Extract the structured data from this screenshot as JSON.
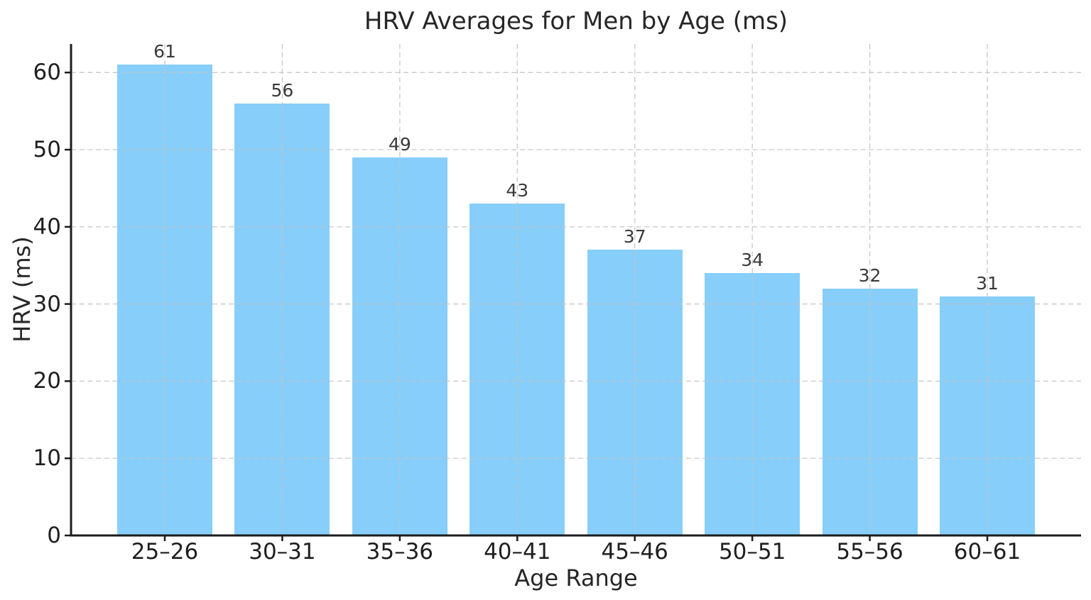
{
  "chart_data": {
    "type": "bar",
    "title": "HRV Averages for Men by Age (ms)",
    "xlabel": "Age Range",
    "ylabel": "HRV (ms)",
    "categories": [
      "25–26",
      "30–31",
      "35–36",
      "40–41",
      "45–46",
      "50–51",
      "55–56",
      "60–61"
    ],
    "values": [
      61,
      56,
      49,
      43,
      37,
      34,
      32,
      31
    ],
    "bar_value_labels": [
      "61",
      "56",
      "49",
      "43",
      "37",
      "34",
      "32",
      "31"
    ],
    "yticks": [
      0,
      10,
      20,
      30,
      40,
      50,
      60
    ],
    "ylim": [
      0,
      63.7
    ],
    "grid": "dashed gridlines on both axes, drawn above bars",
    "legend": "none",
    "colors": {
      "bar_fill": "#87CEFA",
      "grid": "#c3c3c3",
      "spine": "#1c1c1c",
      "text": "#262626",
      "tick_label": "#1f1f1f",
      "value_label": "#3a3a3a",
      "background": "#ffffff"
    }
  }
}
